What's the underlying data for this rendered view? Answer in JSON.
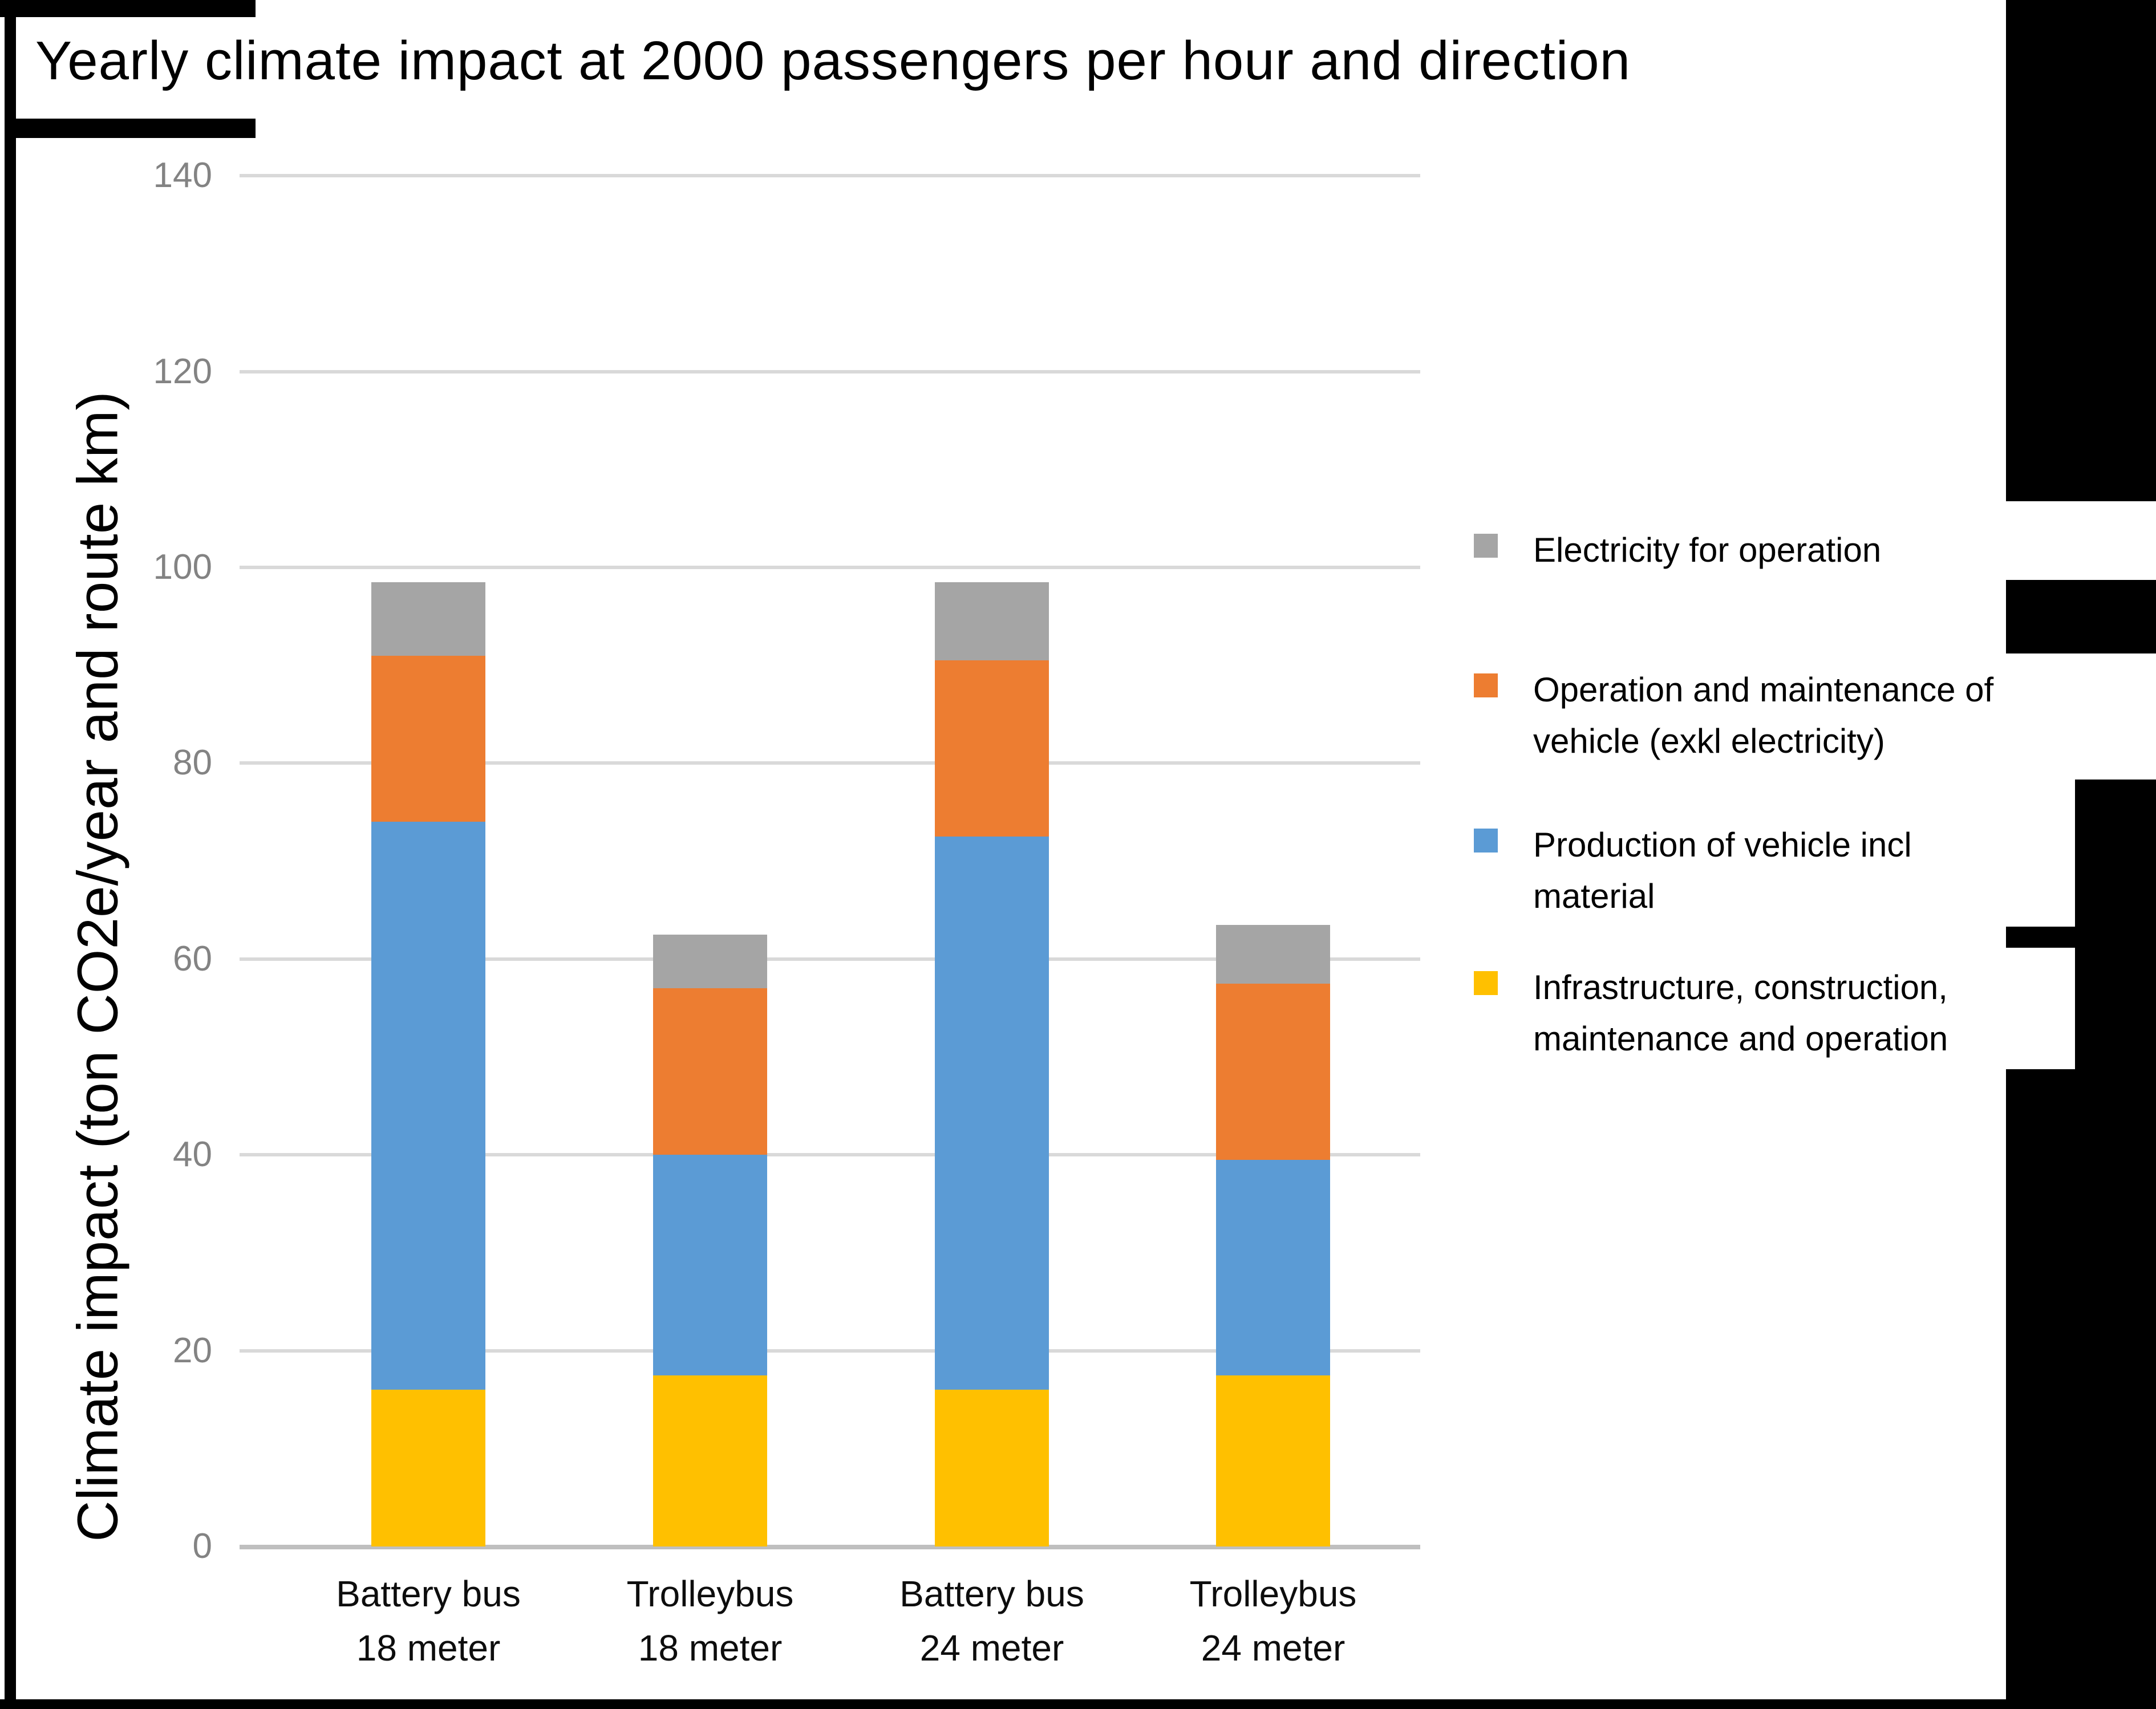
{
  "title": "Yearly climate impact at 2000 passengers per hour and direction",
  "chart_data": {
    "type": "bar",
    "stacked": true,
    "title": "Yearly climate impact at 2000 passengers per hour and direction",
    "xlabel": "",
    "ylabel": "Climate impact (ton CO2e/year and route km)",
    "ylim": [
      0,
      140
    ],
    "yticks": [
      0,
      20,
      40,
      60,
      80,
      100,
      120,
      140
    ],
    "grid": true,
    "legend_position": "right",
    "categories": [
      "Battery bus\n18 meter",
      "Trolleybus\n18 meter",
      "Battery bus\n24 meter",
      "Trolleybus\n24 meter"
    ],
    "series": [
      {
        "name": "Infrastructure, construction, maintenance and operation",
        "color": "#FFC000",
        "values": [
          16,
          17.5,
          16,
          17.5
        ]
      },
      {
        "name": "Production of vehicle incl material",
        "color": "#5B9BD5",
        "values": [
          58,
          22.5,
          56.5,
          22
        ]
      },
      {
        "name": "Operation and maintenance of vehicle (exkl electricity)",
        "color": "#ED7D31",
        "values": [
          17,
          17,
          18,
          18
        ]
      },
      {
        "name": "Electricity for operation",
        "color": "#A5A5A5",
        "values": [
          7.5,
          5.5,
          8,
          6
        ]
      }
    ],
    "stack_totals": [
      98.5,
      62.5,
      98.5,
      63.5
    ]
  },
  "legend": {
    "items": [
      {
        "label": "Electricity for operation",
        "color": "#A5A5A5"
      },
      {
        "label": "Operation and maintenance of\nvehicle (exkl electricity)",
        "color": "#ED7D31"
      },
      {
        "label": "Production of vehicle incl\nmaterial",
        "color": "#5B9BD5"
      },
      {
        "label": "Infrastructure, construction,\nmaintenance and operation",
        "color": "#FFC000"
      }
    ]
  },
  "axis_style": {
    "tick_color": "#838383",
    "grid_color": "#D9D9D9",
    "baseline_color": "#BFBFBF"
  }
}
